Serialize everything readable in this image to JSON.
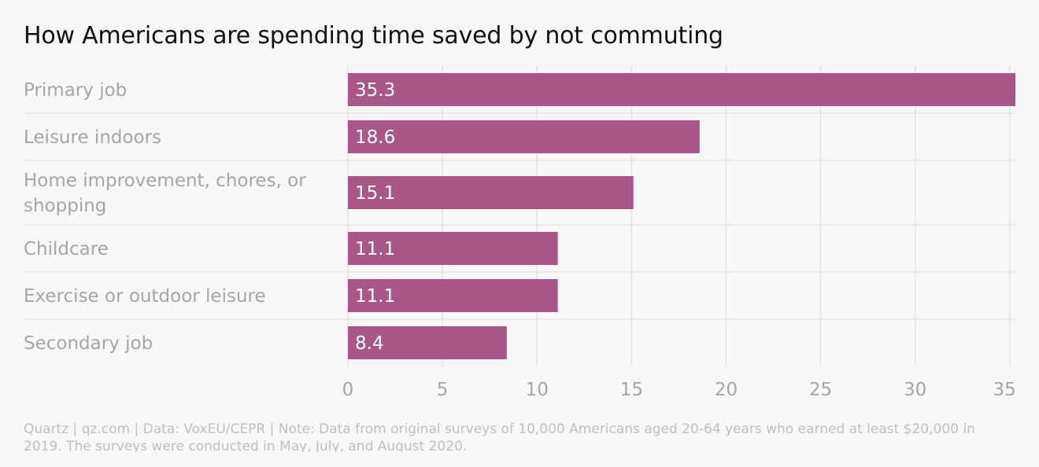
{
  "chart_data": {
    "type": "bar",
    "orientation": "horizontal",
    "title": "How Americans are spending time saved by not commuting",
    "categories": [
      "Primary job",
      "Leisure indoors",
      "Home improvement, chores, or shopping",
      "Childcare",
      "Exercise or outdoor leisure",
      "Secondary job"
    ],
    "values": [
      35.3,
      18.6,
      15.1,
      11.1,
      11.1,
      8.4
    ],
    "value_labels": [
      "35.3",
      "18.6",
      "15.1",
      "11.1",
      "11.1",
      "8.4"
    ],
    "x_ticks": [
      0,
      5,
      10,
      15,
      20,
      25,
      30,
      35
    ],
    "xlim": [
      0,
      35.3
    ],
    "xlabel": "",
    "ylabel": "",
    "grid": true,
    "bar_color": "#a85787",
    "footer": "Quartz | qz.com | Data: VoxEU/CEPR | Note: Data from original surveys of 10,000 Americans aged 20-64 years who earned at least $20,000 in 2019. The surveys were conducted in May, July, and August 2020."
  }
}
